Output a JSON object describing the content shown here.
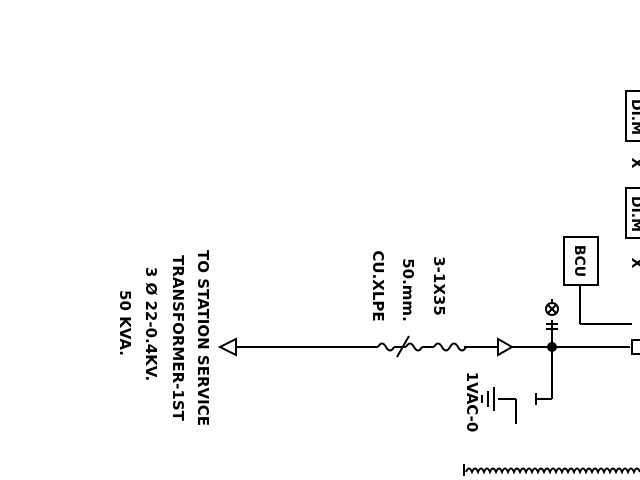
{
  "transformer_label": {
    "line1": "TO STATION SERVICE",
    "line2": "TRANSFORMER-1ST",
    "line3": "3 Ø 22-0.4KV.",
    "line4": "50 KVA."
  },
  "cable_label": {
    "line1": "CU.XLPE",
    "line2": "50.mm.",
    "line3": "3-1X35"
  },
  "bcu_label": "BCU",
  "ground_label": "1VAC-0",
  "meter_left_label": "DI.M",
  "meter_right_label": "DI.M",
  "meter_cross": "X"
}
